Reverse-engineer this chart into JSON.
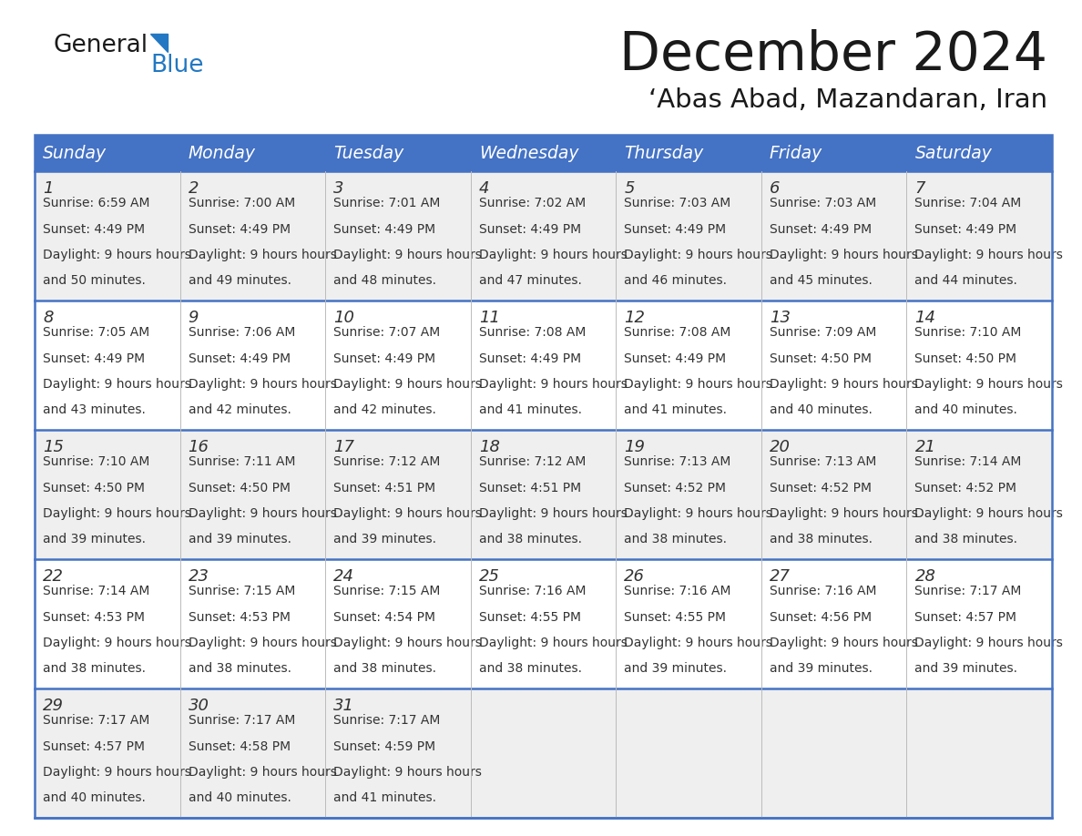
{
  "title": "December 2024",
  "subtitle": "‘Abas Abad, Mazandaran, Iran",
  "header_bg": "#4472C4",
  "header_text_color": "#FFFFFF",
  "days_of_week": [
    "Sunday",
    "Monday",
    "Tuesday",
    "Wednesday",
    "Thursday",
    "Friday",
    "Saturday"
  ],
  "row_bg_odd": "#EFEFEF",
  "row_bg_even": "#FFFFFF",
  "cell_text_color": "#333333",
  "grid_line_color": "#4472C4",
  "calendar_data": [
    [
      {
        "day": 1,
        "sunrise": "6:59 AM",
        "sunset": "4:49 PM",
        "daylight": "9 hours and 50 minutes"
      },
      {
        "day": 2,
        "sunrise": "7:00 AM",
        "sunset": "4:49 PM",
        "daylight": "9 hours and 49 minutes"
      },
      {
        "day": 3,
        "sunrise": "7:01 AM",
        "sunset": "4:49 PM",
        "daylight": "9 hours and 48 minutes"
      },
      {
        "day": 4,
        "sunrise": "7:02 AM",
        "sunset": "4:49 PM",
        "daylight": "9 hours and 47 minutes"
      },
      {
        "day": 5,
        "sunrise": "7:03 AM",
        "sunset": "4:49 PM",
        "daylight": "9 hours and 46 minutes"
      },
      {
        "day": 6,
        "sunrise": "7:03 AM",
        "sunset": "4:49 PM",
        "daylight": "9 hours and 45 minutes"
      },
      {
        "day": 7,
        "sunrise": "7:04 AM",
        "sunset": "4:49 PM",
        "daylight": "9 hours and 44 minutes"
      }
    ],
    [
      {
        "day": 8,
        "sunrise": "7:05 AM",
        "sunset": "4:49 PM",
        "daylight": "9 hours and 43 minutes"
      },
      {
        "day": 9,
        "sunrise": "7:06 AM",
        "sunset": "4:49 PM",
        "daylight": "9 hours and 42 minutes"
      },
      {
        "day": 10,
        "sunrise": "7:07 AM",
        "sunset": "4:49 PM",
        "daylight": "9 hours and 42 minutes"
      },
      {
        "day": 11,
        "sunrise": "7:08 AM",
        "sunset": "4:49 PM",
        "daylight": "9 hours and 41 minutes"
      },
      {
        "day": 12,
        "sunrise": "7:08 AM",
        "sunset": "4:49 PM",
        "daylight": "9 hours and 41 minutes"
      },
      {
        "day": 13,
        "sunrise": "7:09 AM",
        "sunset": "4:50 PM",
        "daylight": "9 hours and 40 minutes"
      },
      {
        "day": 14,
        "sunrise": "7:10 AM",
        "sunset": "4:50 PM",
        "daylight": "9 hours and 40 minutes"
      }
    ],
    [
      {
        "day": 15,
        "sunrise": "7:10 AM",
        "sunset": "4:50 PM",
        "daylight": "9 hours and 39 minutes"
      },
      {
        "day": 16,
        "sunrise": "7:11 AM",
        "sunset": "4:50 PM",
        "daylight": "9 hours and 39 minutes"
      },
      {
        "day": 17,
        "sunrise": "7:12 AM",
        "sunset": "4:51 PM",
        "daylight": "9 hours and 39 minutes"
      },
      {
        "day": 18,
        "sunrise": "7:12 AM",
        "sunset": "4:51 PM",
        "daylight": "9 hours and 38 minutes"
      },
      {
        "day": 19,
        "sunrise": "7:13 AM",
        "sunset": "4:52 PM",
        "daylight": "9 hours and 38 minutes"
      },
      {
        "day": 20,
        "sunrise": "7:13 AM",
        "sunset": "4:52 PM",
        "daylight": "9 hours and 38 minutes"
      },
      {
        "day": 21,
        "sunrise": "7:14 AM",
        "sunset": "4:52 PM",
        "daylight": "9 hours and 38 minutes"
      }
    ],
    [
      {
        "day": 22,
        "sunrise": "7:14 AM",
        "sunset": "4:53 PM",
        "daylight": "9 hours and 38 minutes"
      },
      {
        "day": 23,
        "sunrise": "7:15 AM",
        "sunset": "4:53 PM",
        "daylight": "9 hours and 38 minutes"
      },
      {
        "day": 24,
        "sunrise": "7:15 AM",
        "sunset": "4:54 PM",
        "daylight": "9 hours and 38 minutes"
      },
      {
        "day": 25,
        "sunrise": "7:16 AM",
        "sunset": "4:55 PM",
        "daylight": "9 hours and 38 minutes"
      },
      {
        "day": 26,
        "sunrise": "7:16 AM",
        "sunset": "4:55 PM",
        "daylight": "9 hours and 39 minutes"
      },
      {
        "day": 27,
        "sunrise": "7:16 AM",
        "sunset": "4:56 PM",
        "daylight": "9 hours and 39 minutes"
      },
      {
        "day": 28,
        "sunrise": "7:17 AM",
        "sunset": "4:57 PM",
        "daylight": "9 hours and 39 minutes"
      }
    ],
    [
      {
        "day": 29,
        "sunrise": "7:17 AM",
        "sunset": "4:57 PM",
        "daylight": "9 hours and 40 minutes"
      },
      {
        "day": 30,
        "sunrise": "7:17 AM",
        "sunset": "4:58 PM",
        "daylight": "9 hours and 40 minutes"
      },
      {
        "day": 31,
        "sunrise": "7:17 AM",
        "sunset": "4:59 PM",
        "daylight": "9 hours and 41 minutes"
      },
      null,
      null,
      null,
      null
    ]
  ],
  "logo_general_color": "#1a1a1a",
  "logo_blue_color": "#2278C2",
  "logo_triangle_color": "#2278C2"
}
